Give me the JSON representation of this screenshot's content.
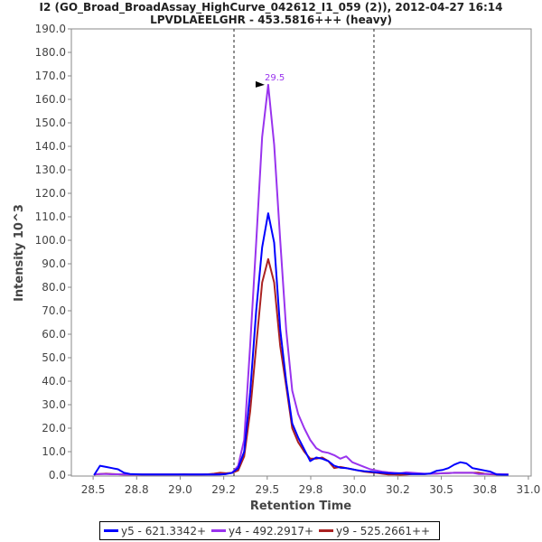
{
  "chart_data": {
    "type": "line",
    "title": "I2 (GO_Broad_BroadAssay_HighCurve_042612_I1_059 (2)), 2012-04-27 16:14",
    "subtitle": "LPVDLAEELGHR - 453.5816+++ (heavy)",
    "xlabel": "Retention Time",
    "ylabel": "Intensity 10^3",
    "xlim": [
      28.375,
      31.016
    ],
    "ylim": [
      0,
      190
    ],
    "xticks": [
      28.5,
      28.75,
      29.0,
      29.25,
      29.5,
      29.75,
      30.0,
      30.25,
      30.5,
      30.75,
      31.0
    ],
    "xtick_labels": [
      "28.5",
      "28.8",
      "29.0",
      "29.2",
      "29.5",
      "29.8",
      "30.0",
      "30.2",
      "30.5",
      "30.8",
      "31.0"
    ],
    "yticks": [
      0,
      10,
      20,
      30,
      40,
      50,
      60,
      70,
      80,
      90,
      100,
      110,
      120,
      130,
      140,
      150,
      160,
      170,
      180,
      190
    ],
    "ytick_labels": [
      "0.0",
      "10.0",
      "20.0",
      "30.0",
      "40.0",
      "50.0",
      "60.0",
      "70.0",
      "80.0",
      "90.0",
      "100.0",
      "110.0",
      "120.0",
      "130.0",
      "140.0",
      "150.0",
      "160.0",
      "170.0",
      "180.0",
      "190.0"
    ],
    "vlines": [
      29.309,
      30.113
    ],
    "annotation": {
      "x": 29.506,
      "y": 166.2,
      "label": "29.5",
      "color": "#9933ee"
    },
    "x_start": 28.505,
    "x_step": 0.0345,
    "series": [
      {
        "name": "y5 - 621.3342+",
        "color": "#0000ff",
        "values": [
          0,
          4,
          3.5,
          3,
          2.5,
          1,
          0.5,
          0.4,
          0.3,
          0.3,
          0.3,
          0.3,
          0.3,
          0.3,
          0.3,
          0.3,
          0.3,
          0.3,
          0.3,
          0.3,
          0.3,
          0.3,
          0.5,
          1,
          3,
          10,
          35,
          70,
          97,
          111.5,
          99,
          62,
          40,
          22,
          16,
          11,
          6,
          7.5,
          7,
          6,
          4,
          3.2,
          3,
          2.5,
          2,
          1.7,
          1.5,
          1.2,
          1,
          0.8,
          0.7,
          0.8,
          0.6,
          0.5,
          0.5,
          0.5,
          0.7,
          1.8,
          2.2,
          3,
          4.5,
          5.5,
          5,
          3,
          2.5,
          2,
          1.5,
          0.3,
          0.2,
          0.2
        ]
      },
      {
        "name": "y4 - 492.2917+",
        "color": "#9933ee",
        "values": [
          0.4,
          0.5,
          0.5,
          0.4,
          0.4,
          0.3,
          0.3,
          0.3,
          0.3,
          0.3,
          0.3,
          0.3,
          0.3,
          0.3,
          0.3,
          0.3,
          0.3,
          0.3,
          0.3,
          0.3,
          0.3,
          0.4,
          0.5,
          1,
          4,
          15,
          55,
          99,
          144,
          166.2,
          140.7,
          100,
          62,
          36,
          26,
          20,
          15,
          11.5,
          10,
          9.5,
          8.5,
          7,
          8,
          5.5,
          4.5,
          3.5,
          2.5,
          2,
          1.5,
          1.2,
          1,
          0.8,
          1.2,
          1,
          0.8,
          0.6,
          0.6,
          0.7,
          0.8,
          0.9,
          1,
          1,
          1,
          1,
          0.5,
          0.5,
          0.5,
          0.5,
          0.4,
          0.3
        ]
      },
      {
        "name": "y9 - 525.2661++",
        "color": "#aa2222",
        "values": [
          0.3,
          0.5,
          0.6,
          0.5,
          0.4,
          0.3,
          0.3,
          0.3,
          0.3,
          0.3,
          0.3,
          0.3,
          0.3,
          0.3,
          0.3,
          0.4,
          0.3,
          0.3,
          0.3,
          0.4,
          0.6,
          1,
          0.8,
          1,
          2,
          8,
          27,
          55,
          82,
          92,
          82,
          55,
          38,
          20,
          14,
          10,
          7,
          7,
          7.5,
          6,
          3,
          3.5,
          3,
          2.5,
          2,
          1.5,
          1.2,
          1,
          0.6,
          0.3,
          0.3,
          0.2,
          0.3,
          0.5,
          0.5,
          0.5,
          0.6,
          0.7,
          0.8,
          0.9,
          1,
          1,
          1,
          1,
          1,
          0.6,
          0.4,
          0.3,
          0.3,
          0.3
        ]
      }
    ]
  }
}
